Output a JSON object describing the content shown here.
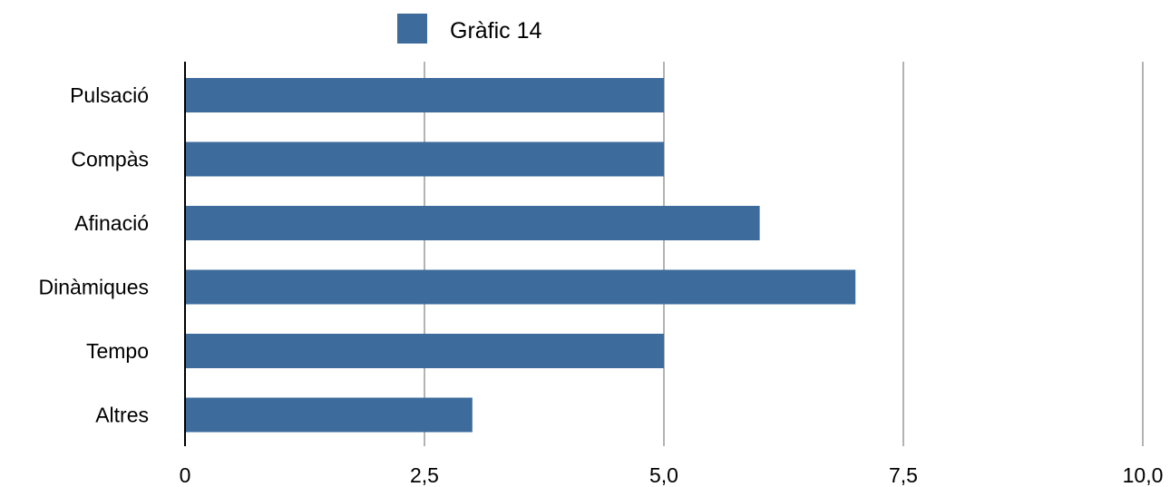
{
  "chart_data": {
    "type": "bar",
    "orientation": "horizontal",
    "categories": [
      "Pulsació",
      "Compàs",
      "Afinació",
      "Dinàmiques",
      "Tempo",
      "Altres"
    ],
    "series": [
      {
        "name": "Gràfic 14",
        "values": [
          5,
          5,
          6,
          7,
          5,
          3
        ]
      }
    ],
    "xlim": [
      0,
      10
    ],
    "x_ticks": [
      0,
      2.5,
      5,
      7.5,
      10
    ],
    "x_tick_labels": [
      "0",
      "2,5",
      "5,0",
      "7,5",
      "10,0"
    ],
    "grid": true,
    "grid_axis": "x",
    "legend_position": "top-center"
  },
  "colors": {
    "bar": "#3d6b9c",
    "grid": "#b3b3b3",
    "axis": "#000000",
    "text": "#000000"
  }
}
